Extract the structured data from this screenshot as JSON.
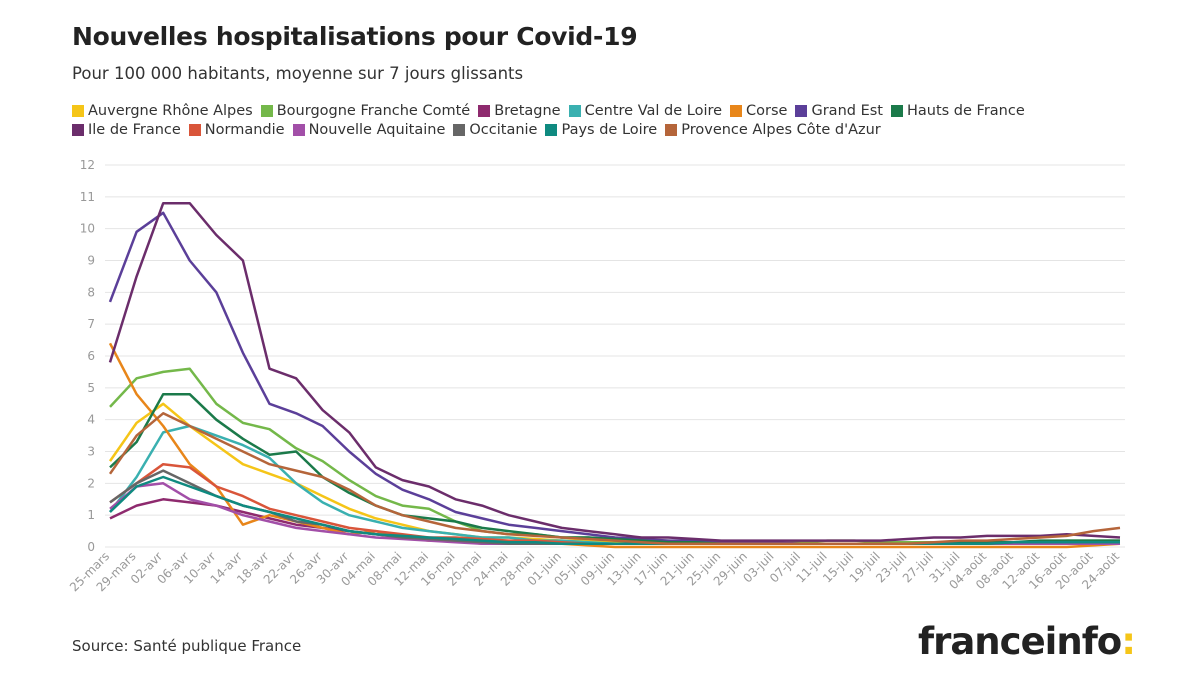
{
  "chart_data": {
    "type": "line",
    "title": "Nouvelles hospitalisations pour Covid-19",
    "subtitle": "Pour 100 000 habitants, moyenne sur 7 jours glissants",
    "source": "Source: Santé publique France",
    "logo": {
      "name": "franceinfo",
      "mark": ":"
    },
    "categories": [
      "25-mars",
      "29-mars",
      "02-avr",
      "06-avr",
      "10-avr",
      "14-avr",
      "18-avr",
      "22-avr",
      "26-avr",
      "30-avr",
      "04-mai",
      "08-mai",
      "12-mai",
      "16-mai",
      "20-mai",
      "24-mai",
      "28-mai",
      "01-juin",
      "05-juin",
      "09-juin",
      "13-juin",
      "17-juin",
      "21-juin",
      "25-juin",
      "29-juin",
      "03-juil",
      "07-juil",
      "11-juil",
      "15-juil",
      "19-juil",
      "23-juil",
      "27-juil",
      "31-juil",
      "04-août",
      "08-août",
      "12-août",
      "16-août",
      "20-août",
      "24-août"
    ],
    "ylim": [
      0,
      12
    ],
    "yticks": [
      0,
      1,
      2,
      3,
      4,
      5,
      6,
      7,
      8,
      9,
      10,
      11,
      12
    ],
    "grid": true,
    "series": [
      {
        "name": "Auvergne Rhône Alpes",
        "color": "#f5c518",
        "values": [
          2.7,
          3.9,
          4.5,
          3.8,
          3.2,
          2.6,
          2.3,
          2.0,
          1.6,
          1.2,
          0.9,
          0.7,
          0.5,
          0.4,
          0.3,
          0.3,
          0.25,
          0.2,
          0.2,
          0.15,
          0.1,
          0.1,
          0.1,
          0.1,
          0.1,
          0.1,
          0.1,
          0.1,
          0.1,
          0.1,
          0.1,
          0.1,
          0.1,
          0.1,
          0.1,
          0.15,
          0.15,
          0.15,
          0.15
        ]
      },
      {
        "name": "Bourgogne Franche Comté",
        "color": "#74b84a",
        "values": [
          4.4,
          5.3,
          5.5,
          5.6,
          4.5,
          3.9,
          3.7,
          3.1,
          2.7,
          2.1,
          1.6,
          1.3,
          1.2,
          0.8,
          0.5,
          0.4,
          0.4,
          0.3,
          0.3,
          0.2,
          0.2,
          0.2,
          0.15,
          0.1,
          0.1,
          0.1,
          0.15,
          0.2,
          0.2,
          0.15,
          0.15,
          0.15,
          0.15,
          0.15,
          0.15,
          0.15,
          0.2,
          0.2,
          0.2
        ]
      },
      {
        "name": "Bretagne",
        "color": "#8e2a6e",
        "values": [
          0.9,
          1.3,
          1.5,
          1.4,
          1.3,
          1.1,
          0.9,
          0.7,
          0.6,
          0.5,
          0.4,
          0.3,
          0.25,
          0.2,
          0.15,
          0.1,
          0.1,
          0.1,
          0.1,
          0.1,
          0.1,
          0.1,
          0.1,
          0.1,
          0.1,
          0.1,
          0.1,
          0.1,
          0.1,
          0.1,
          0.1,
          0.1,
          0.1,
          0.1,
          0.1,
          0.1,
          0.1,
          0.1,
          0.1
        ]
      },
      {
        "name": "Centre Val de Loire",
        "color": "#3ab0b0",
        "values": [
          1.1,
          2.2,
          3.6,
          3.8,
          3.5,
          3.2,
          2.8,
          2.0,
          1.4,
          1.0,
          0.8,
          0.6,
          0.5,
          0.4,
          0.3,
          0.3,
          0.2,
          0.2,
          0.15,
          0.1,
          0.1,
          0.1,
          0.1,
          0.1,
          0.1,
          0.1,
          0.1,
          0.1,
          0.1,
          0.1,
          0.1,
          0.1,
          0.1,
          0.1,
          0.1,
          0.1,
          0.1,
          0.1,
          0.1
        ]
      },
      {
        "name": "Corse",
        "color": "#e8861a",
        "values": [
          6.4,
          4.8,
          3.8,
          2.6,
          1.9,
          0.7,
          1.0,
          0.8,
          0.6,
          0.4,
          0.5,
          0.3,
          0.2,
          0.2,
          0.1,
          0.1,
          0.1,
          0.1,
          0.05,
          0,
          0,
          0,
          0,
          0,
          0,
          0,
          0,
          0,
          0,
          0,
          0,
          0,
          0,
          0,
          0,
          0,
          0,
          0.05,
          0.1
        ]
      },
      {
        "name": "Grand Est",
        "color": "#5b3f99",
        "values": [
          7.7,
          9.9,
          10.5,
          9.0,
          8.0,
          6.1,
          4.5,
          4.2,
          3.8,
          3.0,
          2.3,
          1.8,
          1.5,
          1.1,
          0.9,
          0.7,
          0.6,
          0.5,
          0.4,
          0.3,
          0.25,
          0.2,
          0.2,
          0.15,
          0.15,
          0.15,
          0.1,
          0.1,
          0.1,
          0.1,
          0.1,
          0.1,
          0.1,
          0.1,
          0.1,
          0.1,
          0.1,
          0.1,
          0.1
        ]
      },
      {
        "name": "Hauts de France",
        "color": "#1b7a4a",
        "values": [
          2.5,
          3.3,
          4.8,
          4.8,
          4.0,
          3.4,
          2.9,
          3.0,
          2.2,
          1.7,
          1.3,
          1.0,
          0.9,
          0.8,
          0.6,
          0.5,
          0.4,
          0.3,
          0.3,
          0.25,
          0.2,
          0.15,
          0.15,
          0.1,
          0.1,
          0.1,
          0.1,
          0.1,
          0.1,
          0.1,
          0.1,
          0.1,
          0.15,
          0.15,
          0.15,
          0.2,
          0.2,
          0.2,
          0.2
        ]
      },
      {
        "name": "Ile de France",
        "color": "#6b2d6b",
        "values": [
          5.8,
          8.5,
          10.8,
          10.8,
          9.8,
          9.0,
          5.6,
          5.3,
          4.3,
          3.6,
          2.5,
          2.1,
          1.9,
          1.5,
          1.3,
          1.0,
          0.8,
          0.6,
          0.5,
          0.4,
          0.3,
          0.3,
          0.25,
          0.2,
          0.2,
          0.2,
          0.2,
          0.2,
          0.2,
          0.2,
          0.25,
          0.3,
          0.3,
          0.35,
          0.35,
          0.35,
          0.4,
          0.35,
          0.3
        ]
      },
      {
        "name": "Normandie",
        "color": "#d9553a",
        "values": [
          1.4,
          2.0,
          2.6,
          2.5,
          1.9,
          1.6,
          1.2,
          1.0,
          0.8,
          0.6,
          0.5,
          0.4,
          0.3,
          0.3,
          0.25,
          0.2,
          0.2,
          0.15,
          0.1,
          0.1,
          0.1,
          0.1,
          0.1,
          0.1,
          0.1,
          0.1,
          0.1,
          0.1,
          0.1,
          0.1,
          0.1,
          0.1,
          0.1,
          0.1,
          0.1,
          0.1,
          0.1,
          0.1,
          0.1
        ]
      },
      {
        "name": "Nouvelle Aquitaine",
        "color": "#a24fa8",
        "values": [
          1.2,
          1.9,
          2.0,
          1.5,
          1.3,
          1.0,
          0.8,
          0.6,
          0.5,
          0.4,
          0.3,
          0.25,
          0.2,
          0.15,
          0.1,
          0.1,
          0.1,
          0.1,
          0.1,
          0.1,
          0.1,
          0.1,
          0.1,
          0.1,
          0.1,
          0.1,
          0.1,
          0.1,
          0.1,
          0.1,
          0.1,
          0.1,
          0.1,
          0.1,
          0.1,
          0.1,
          0.1,
          0.1,
          0.1
        ]
      },
      {
        "name": "Occitanie",
        "color": "#666666",
        "values": [
          1.4,
          2.0,
          2.4,
          2.0,
          1.6,
          1.3,
          1.1,
          0.8,
          0.7,
          0.5,
          0.4,
          0.3,
          0.25,
          0.2,
          0.15,
          0.1,
          0.1,
          0.1,
          0.1,
          0.1,
          0.1,
          0.1,
          0.1,
          0.1,
          0.1,
          0.1,
          0.1,
          0.1,
          0.1,
          0.1,
          0.1,
          0.1,
          0.1,
          0.1,
          0.15,
          0.15,
          0.15,
          0.15,
          0.15
        ]
      },
      {
        "name": "Pays de Loire",
        "color": "#0f8a80",
        "values": [
          1.1,
          1.9,
          2.2,
          1.9,
          1.6,
          1.3,
          1.1,
          0.9,
          0.7,
          0.5,
          0.4,
          0.35,
          0.3,
          0.25,
          0.2,
          0.15,
          0.15,
          0.1,
          0.1,
          0.1,
          0.1,
          0.1,
          0.1,
          0.1,
          0.1,
          0.1,
          0.1,
          0.1,
          0.1,
          0.1,
          0.1,
          0.1,
          0.1,
          0.1,
          0.15,
          0.15,
          0.15,
          0.15,
          0.15
        ]
      },
      {
        "name": "Provence Alpes Côte d'Azur",
        "color": "#b5653a",
        "values": [
          2.3,
          3.5,
          4.2,
          3.8,
          3.4,
          3.0,
          2.6,
          2.4,
          2.2,
          1.8,
          1.3,
          1.0,
          0.8,
          0.6,
          0.5,
          0.4,
          0.35,
          0.3,
          0.25,
          0.2,
          0.15,
          0.1,
          0.1,
          0.1,
          0.1,
          0.1,
          0.1,
          0.1,
          0.1,
          0.1,
          0.1,
          0.15,
          0.2,
          0.2,
          0.25,
          0.3,
          0.35,
          0.5,
          0.6
        ]
      }
    ]
  }
}
